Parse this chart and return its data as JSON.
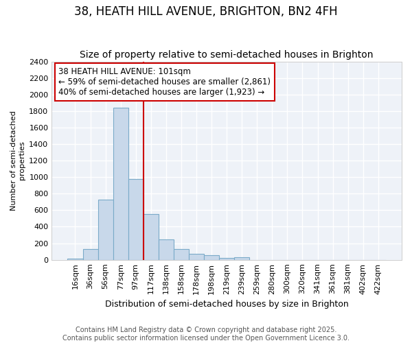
{
  "title": "38, HEATH HILL AVENUE, BRIGHTON, BN2 4FH",
  "subtitle": "Size of property relative to semi-detached houses in Brighton",
  "xlabel": "Distribution of semi-detached houses by size in Brighton",
  "ylabel": "Number of semi-detached\nproperties",
  "bar_labels": [
    "16sqm",
    "36sqm",
    "56sqm",
    "77sqm",
    "97sqm",
    "117sqm",
    "138sqm",
    "158sqm",
    "178sqm",
    "198sqm",
    "219sqm",
    "239sqm",
    "259sqm",
    "280sqm",
    "300sqm",
    "320sqm",
    "341sqm",
    "361sqm",
    "381sqm",
    "402sqm",
    "422sqm"
  ],
  "bar_values": [
    15,
    130,
    730,
    1840,
    980,
    550,
    250,
    130,
    70,
    55,
    25,
    30,
    0,
    0,
    0,
    0,
    0,
    0,
    0,
    0,
    0
  ],
  "bar_color": "#c8d8ea",
  "bar_edge_color": "#7aaac8",
  "background_color": "#eef2f8",
  "grid_color": "#ffffff",
  "annotation_text": "38 HEATH HILL AVENUE: 101sqm\n← 59% of semi-detached houses are smaller (2,861)\n40% of semi-detached houses are larger (1,923) →",
  "annotation_box_color": "#ffffff",
  "annotation_border_color": "#cc0000",
  "vline_color": "#cc0000",
  "vline_position": 4.5,
  "ylim": [
    0,
    2400
  ],
  "yticks": [
    0,
    200,
    400,
    600,
    800,
    1000,
    1200,
    1400,
    1600,
    1800,
    2000,
    2200,
    2400
  ],
  "footer_text": "Contains HM Land Registry data © Crown copyright and database right 2025.\nContains public sector information licensed under the Open Government Licence 3.0.",
  "title_fontsize": 12,
  "subtitle_fontsize": 10,
  "xlabel_fontsize": 9,
  "ylabel_fontsize": 8,
  "tick_fontsize": 8,
  "annotation_fontsize": 8.5,
  "footer_fontsize": 7
}
